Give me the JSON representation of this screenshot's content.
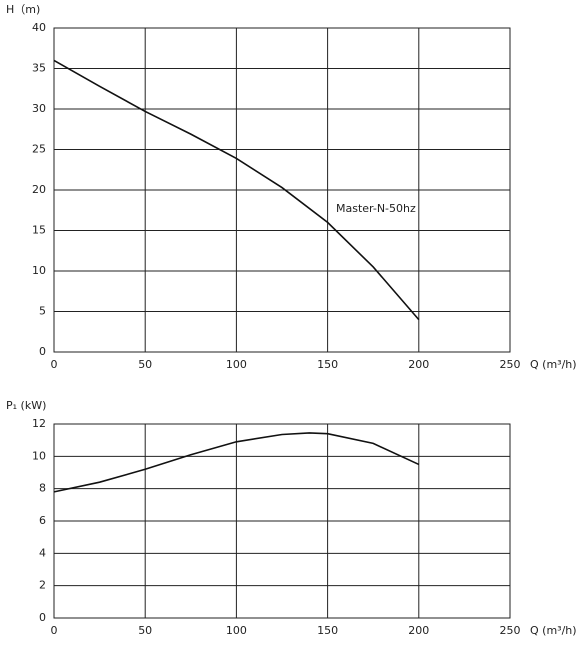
{
  "chart_data": [
    {
      "type": "line",
      "ylabel": "H（m)",
      "xlabel": "Q (m³/h)",
      "annotation": "Master-N-50hz",
      "xlim": [
        0,
        250
      ],
      "xticks": [
        0,
        50,
        100,
        150,
        200,
        250
      ],
      "ylim": [
        0,
        40
      ],
      "yticks": [
        0,
        5,
        10,
        15,
        20,
        25,
        30,
        35,
        40
      ],
      "grid": true,
      "series": [
        {
          "color": "#111111",
          "x": [
            0,
            25,
            50,
            75,
            100,
            125,
            150,
            175,
            200
          ],
          "values": [
            36,
            32.8,
            29.7,
            26.9,
            23.9,
            20.3,
            16,
            10.5,
            4
          ]
        }
      ]
    },
    {
      "type": "line",
      "ylabel": "P₁ (kW)",
      "xlabel": "Q (m³/h)",
      "xlim": [
        0,
        250
      ],
      "xticks": [
        0,
        50,
        100,
        150,
        200,
        250
      ],
      "ylim": [
        0,
        12
      ],
      "yticks": [
        0,
        2,
        4,
        6,
        8,
        10,
        12
      ],
      "grid": true,
      "series": [
        {
          "color": "#111111",
          "x": [
            0,
            25,
            50,
            75,
            100,
            125,
            140,
            150,
            175,
            200
          ],
          "values": [
            7.8,
            8.4,
            9.2,
            10.1,
            10.9,
            11.35,
            11.45,
            11.4,
            10.8,
            9.5
          ]
        }
      ]
    }
  ]
}
